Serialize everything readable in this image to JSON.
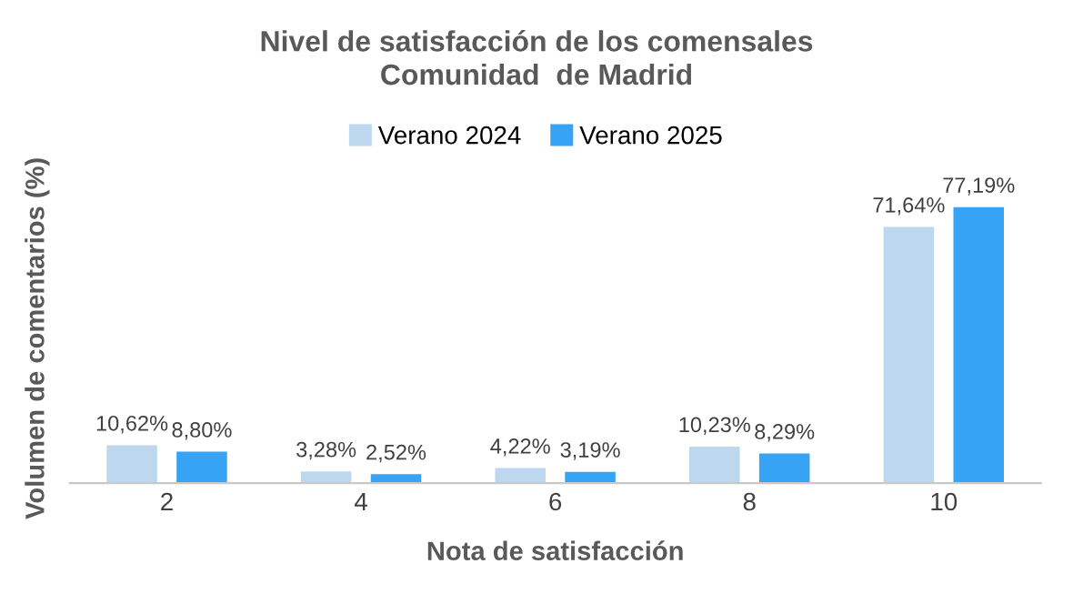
{
  "chart_data": {
    "type": "bar",
    "title": "Nivel de satisfacción de los comensales\nComunidad  de Madrid",
    "xlabel": "Nota de satisfacción",
    "ylabel": "Volumen de comentarios (%)",
    "categories": [
      "2",
      "4",
      "6",
      "8",
      "10"
    ],
    "series": [
      {
        "name": "Verano 2024",
        "color": "#bdd7ee",
        "values": [
          10.62,
          3.28,
          4.22,
          10.23,
          71.64
        ],
        "value_labels": [
          "10,62%",
          "3,28%",
          "4,22%",
          "10,23%",
          "71,64%"
        ]
      },
      {
        "name": "Verano 2025",
        "color": "#36a3f5",
        "values": [
          8.8,
          2.52,
          3.19,
          8.29,
          77.19
        ],
        "value_labels": [
          "8,80%",
          "2,52%",
          "3,19%",
          "8,29%",
          "77,19%"
        ]
      }
    ],
    "legend": "top",
    "grid": false,
    "tick_labels": "x"
  }
}
